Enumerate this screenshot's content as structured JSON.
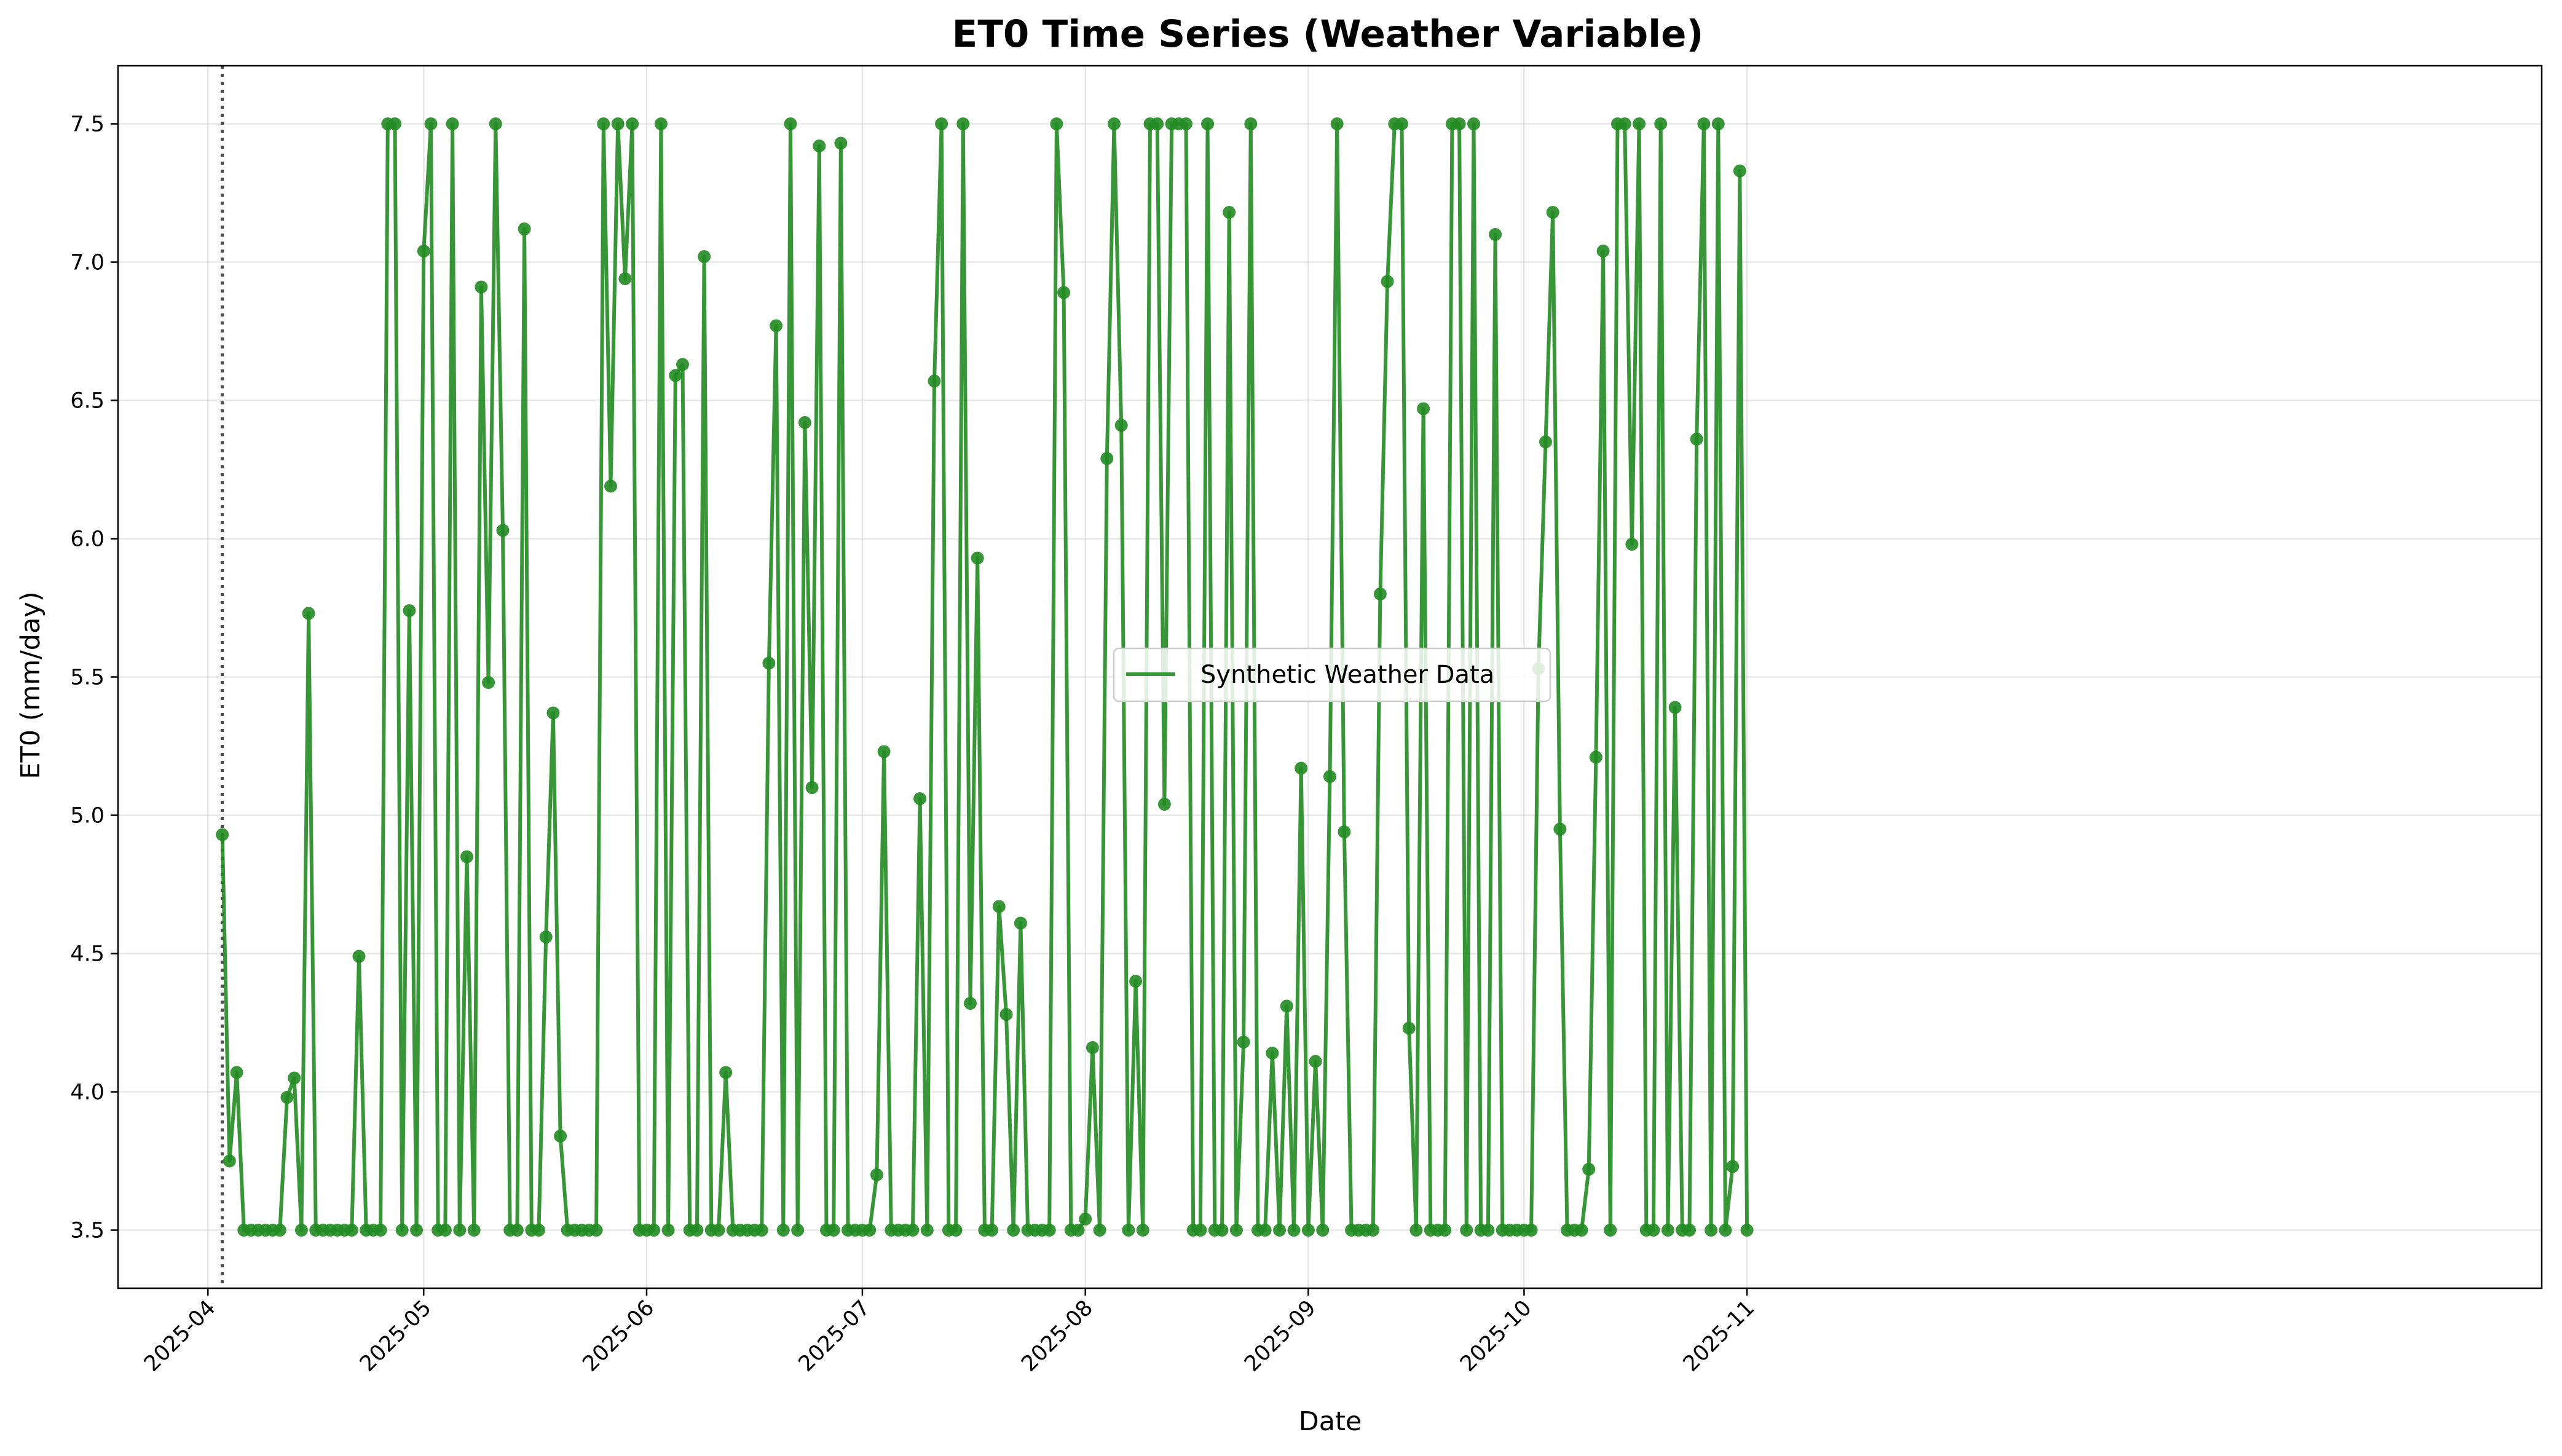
{
  "chart_data": {
    "type": "line",
    "title": "ET0 Time Series (Weather Variable)",
    "xlabel": "Date",
    "ylabel": "ET0 (mm/day)",
    "ylim": [
      3.29,
      7.71
    ],
    "xlim": [
      -14.5,
      322.5
    ],
    "x_is_day_offset_from": "2025-04-03",
    "grid": true,
    "legend_position": "center",
    "color": "#228b22",
    "marker_line_day": 0,
    "x_ticks": [
      {
        "label": "2025-04",
        "day": -2
      },
      {
        "label": "2025-05",
        "day": 28
      },
      {
        "label": "2025-06",
        "day": 59
      },
      {
        "label": "2025-07",
        "day": 89
      },
      {
        "label": "2025-08",
        "day": 120
      },
      {
        "label": "2025-09",
        "day": 151
      },
      {
        "label": "2025-10",
        "day": 181
      },
      {
        "label": "2025-11",
        "day": 212
      }
    ],
    "y_ticks": [
      {
        "label": "3.5",
        "value": 3.5
      },
      {
        "label": "4.0",
        "value": 4.0
      },
      {
        "label": "4.5",
        "value": 4.5
      },
      {
        "label": "5.0",
        "value": 5.0
      },
      {
        "label": "5.5",
        "value": 5.5
      },
      {
        "label": "6.0",
        "value": 6.0
      },
      {
        "label": "6.5",
        "value": 6.5
      },
      {
        "label": "7.0",
        "value": 7.0
      },
      {
        "label": "7.5",
        "value": 7.5
      }
    ],
    "series": [
      {
        "name": "Synthetic Weather Data",
        "values": [
          4.93,
          3.75,
          4.07,
          3.5,
          3.5,
          3.5,
          3.5,
          3.5,
          3.5,
          3.98,
          4.05,
          3.5,
          5.73,
          3.5,
          3.5,
          3.5,
          3.5,
          3.5,
          3.5,
          4.49,
          3.5,
          3.5,
          3.5,
          7.5,
          7.5,
          3.5,
          5.74,
          3.5,
          7.04,
          7.5,
          3.5,
          3.5,
          7.5,
          3.5,
          4.85,
          3.5,
          6.91,
          5.48,
          7.5,
          6.03,
          3.5,
          3.5,
          7.12,
          3.5,
          3.5,
          4.56,
          5.37,
          3.84,
          3.5,
          3.5,
          3.5,
          3.5,
          3.5,
          7.5,
          6.19,
          7.5,
          6.94,
          7.5,
          3.5,
          3.5,
          3.5,
          7.5,
          3.5,
          6.59,
          6.63,
          3.5,
          3.5,
          7.02,
          3.5,
          3.5,
          4.07,
          3.5,
          3.5,
          3.5,
          3.5,
          3.5,
          5.55,
          6.77,
          3.5,
          7.5,
          3.5,
          6.42,
          5.1,
          7.42,
          3.5,
          3.5,
          7.43,
          3.5,
          3.5,
          3.5,
          3.5,
          3.7,
          5.23,
          3.5,
          3.5,
          3.5,
          3.5,
          5.06,
          3.5,
          6.57,
          7.5,
          3.5,
          3.5,
          7.5,
          4.32,
          5.93,
          3.5,
          3.5,
          4.67,
          4.28,
          3.5,
          4.61,
          3.5,
          3.5,
          3.5,
          3.5,
          7.5,
          6.89,
          3.5,
          3.5,
          3.54,
          4.16,
          3.5,
          6.29,
          7.5,
          6.41,
          3.5,
          4.4,
          3.5,
          7.5,
          7.5,
          5.04,
          7.5,
          7.5,
          7.5,
          3.5,
          3.5,
          7.5,
          3.5,
          3.5,
          7.18,
          3.5,
          4.18,
          7.5,
          3.5,
          3.5,
          4.14,
          3.5,
          4.31,
          3.5,
          5.17,
          3.5,
          4.11,
          3.5,
          5.14,
          7.5,
          4.94,
          3.5,
          3.5,
          3.5,
          3.5,
          5.8,
          6.93,
          7.5,
          7.5,
          4.23,
          3.5,
          6.47,
          3.5,
          3.5,
          3.5,
          7.5,
          7.5,
          3.5,
          7.5,
          3.5,
          3.5,
          7.1,
          3.5,
          3.5,
          3.5,
          3.5,
          3.5,
          5.53,
          6.35,
          7.18,
          4.95,
          3.5,
          3.5,
          3.5,
          3.72,
          5.21,
          7.04,
          3.5,
          7.5,
          7.5,
          5.98,
          7.5,
          3.5,
          3.5,
          7.5,
          3.5,
          5.39,
          3.5,
          3.5,
          6.36,
          7.5,
          3.5,
          7.5,
          3.5,
          3.73,
          7.33,
          3.5
        ]
      }
    ]
  }
}
